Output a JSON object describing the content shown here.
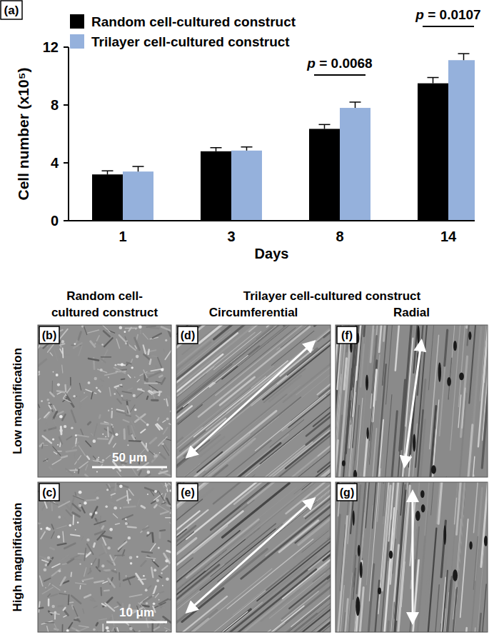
{
  "chart_data": {
    "type": "bar",
    "x_label": "Days",
    "y_label": "Cell number (x10⁵)",
    "categories": [
      "1",
      "3",
      "8",
      "14"
    ],
    "series": [
      {
        "name": "Random cell-cultured construct",
        "color": "#000000",
        "values": [
          3.2,
          4.8,
          6.35,
          9.5
        ],
        "errors": [
          0.25,
          0.25,
          0.3,
          0.4
        ]
      },
      {
        "name": "Trilayer cell-cultured construct",
        "color": "#95b1dc",
        "values": [
          3.4,
          4.85,
          7.8,
          11.1
        ],
        "errors": [
          0.35,
          0.25,
          0.4,
          0.45
        ]
      }
    ],
    "p_values": [
      null,
      null,
      "p = 0.0068",
      "p = 0.0107"
    ],
    "ylim": [
      0,
      12
    ],
    "yticks": [
      0,
      4,
      8,
      12
    ],
    "grid": false,
    "legend": "upper left"
  },
  "figure": {
    "chart_label": "(a)",
    "random_header": "Random cell-cultured construct",
    "trilayer_header": "Trilayer cell-cultured construct",
    "trilayer_columns": [
      "Circumferential",
      "Radial"
    ],
    "rows": [
      "Low magnification",
      "High magnification"
    ],
    "panels": [
      {
        "label": "(b)",
        "scale_bar": "50 μm"
      },
      {
        "label": "(c)",
        "scale_bar": "10 μm"
      },
      {
        "label": "(d)"
      },
      {
        "label": "(e)"
      },
      {
        "label": "(f)"
      },
      {
        "label": "(g)"
      }
    ]
  }
}
